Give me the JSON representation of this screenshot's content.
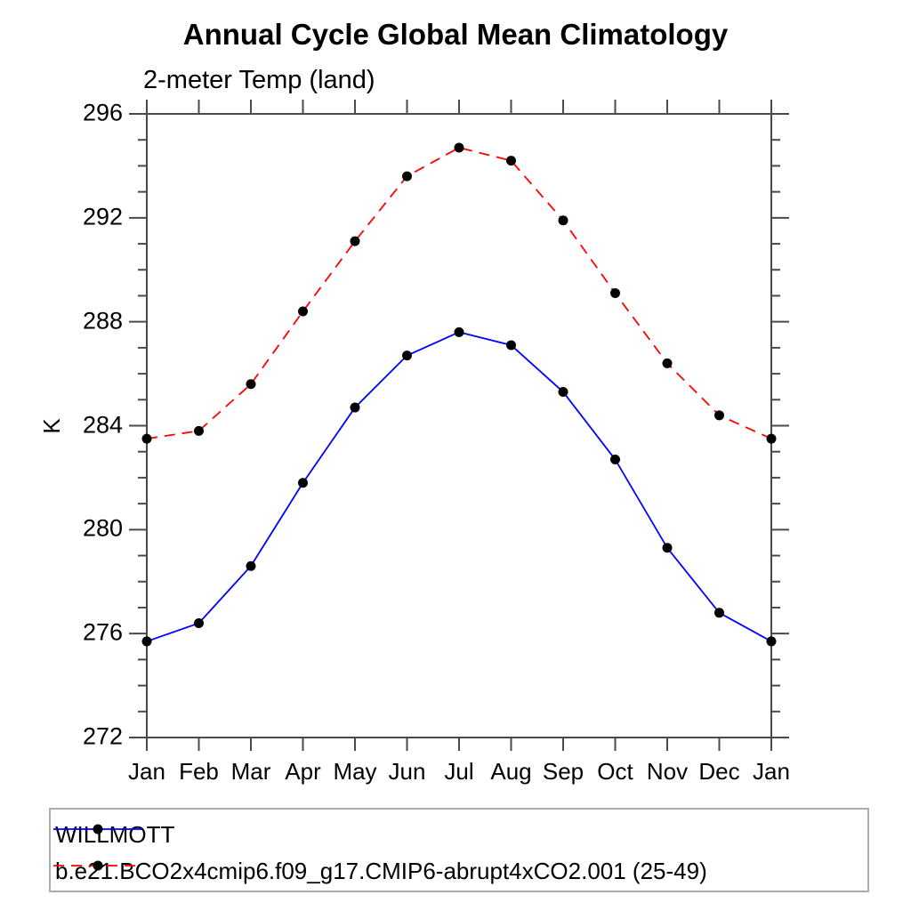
{
  "chart_data": {
    "type": "line",
    "title": "Annual Cycle Global Mean Climatology",
    "subtitle": "2-meter Temp (land)",
    "xlabel": "",
    "ylabel": "K",
    "categories": [
      "Jan",
      "Feb",
      "Mar",
      "Apr",
      "May",
      "Jun",
      "Jul",
      "Aug",
      "Sep",
      "Oct",
      "Nov",
      "Dec",
      "Jan"
    ],
    "y_ticks": [
      272,
      276,
      280,
      284,
      288,
      292,
      296
    ],
    "ylim": [
      272,
      296
    ],
    "minor_tick_interval": 1,
    "grid": false,
    "legend_position": "bottom-left-box",
    "axis_color": "#4a4a4a",
    "marker": "filled-circle",
    "marker_color": "#000000",
    "series": [
      {
        "name": "WILLMOTT",
        "color": "#0000ff",
        "line_style": "solid",
        "values": [
          275.7,
          276.4,
          278.6,
          281.8,
          284.7,
          286.7,
          287.6,
          287.1,
          285.3,
          282.7,
          279.3,
          276.8,
          275.7
        ]
      },
      {
        "name": "b.e21.BCO2x4cmip6.f09_g17.CMIP6-abrupt4xCO2.001 (25-49)",
        "color": "#ff0000",
        "line_style": "dashed",
        "values": [
          283.5,
          283.8,
          285.6,
          288.4,
          291.1,
          293.6,
          294.7,
          294.2,
          291.9,
          289.1,
          286.4,
          284.4,
          283.5
        ]
      }
    ]
  }
}
